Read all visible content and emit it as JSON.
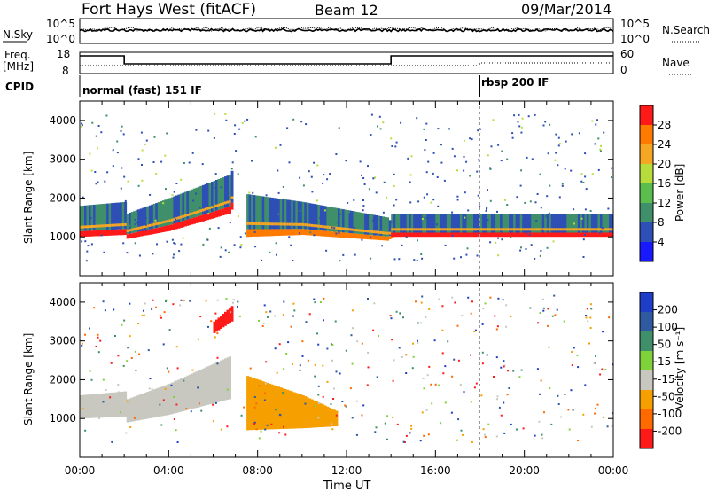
{
  "header": {
    "station": "Fort Hays West (fitACF)",
    "beam": "Beam 12",
    "date": "09/Mar/2014"
  },
  "noise_panel": {
    "left_label": "N.Sky",
    "left_ticks": [
      "10^5",
      "10^0"
    ],
    "right_label": "N.Search",
    "right_ticks": [
      "10^5",
      "10^0"
    ]
  },
  "freq_panel": {
    "left_label": "Freq.",
    "left_unit": "[MHz]",
    "left_ticks": [
      "18",
      "8"
    ],
    "right_label": "Nave",
    "right_ticks": [
      "60",
      "0"
    ]
  },
  "cpid_panel": {
    "label": "CPID",
    "segments": [
      {
        "start_hour": 0,
        "name": "normal (fast) 151 IF"
      },
      {
        "start_hour": 18,
        "name": "rbsp 200 IF"
      }
    ]
  },
  "chart_data": [
    {
      "type": "heatmap",
      "id": "power",
      "ylabel": "Slant Range [km]",
      "xlabel": "Time UT",
      "xlim": [
        0,
        24
      ],
      "ylim": [
        0,
        4500
      ],
      "yticks": [
        1000,
        2000,
        3000,
        4000
      ],
      "xticks": [
        "00:00",
        "04:00",
        "08:00",
        "12:00",
        "16:00",
        "20:00",
        "00:00"
      ],
      "colorbar": {
        "label": "Power [dB]",
        "tick_labels": [
          "28",
          "24",
          "20",
          "16",
          "12",
          "8",
          "4"
        ],
        "colors": [
          "#ff1a1a",
          "#ff7a00",
          "#f5a623",
          "#b7dd3d",
          "#5cbd4f",
          "#3e8f6a",
          "#2e4fb5",
          "#1919ff"
        ]
      },
      "bands": [
        {
          "note": "main echo band",
          "x": [
            0,
            2,
            2.1,
            4,
            6.7,
            6.8
          ],
          "range_low": [
            1000,
            1050,
            950,
            1150,
            1600,
            1700
          ],
          "range_high": [
            1800,
            1900,
            1600,
            2000,
            2600,
            2700
          ],
          "core_power": 28
        },
        {
          "note": "midday band",
          "x": [
            7.5,
            10,
            13.8,
            14.1
          ],
          "range_low": [
            1000,
            1050,
            900,
            1000
          ],
          "range_high": [
            2100,
            1900,
            1500,
            1300
          ],
          "core_power": 24
        },
        {
          "note": "afternoon band",
          "x": [
            14,
            24
          ],
          "range_low": [
            1000,
            1000
          ],
          "range_high": [
            1600,
            1600
          ],
          "core_power": 28
        }
      ]
    },
    {
      "type": "heatmap",
      "id": "velocity",
      "ylabel": "Slant Range [km]",
      "xlabel": "Time UT",
      "xlim": [
        0,
        24
      ],
      "ylim": [
        0,
        4500
      ],
      "yticks": [
        1000,
        2000,
        3000,
        4000
      ],
      "xticks": [
        "00:00",
        "04:00",
        "08:00",
        "12:00",
        "16:00",
        "20:00",
        "00:00"
      ],
      "colorbar": {
        "label": "Velocity [m s⁻¹]",
        "tick_labels": [
          "200",
          "100",
          "50",
          "15",
          "-15",
          "-50",
          "-100",
          "-200"
        ],
        "colors": [
          "#1f3ec8",
          "#2f5aa0",
          "#3e8f6a",
          "#7fd23a",
          "#c8c8c0",
          "#f5a000",
          "#ff6a00",
          "#ff1a1a"
        ]
      },
      "bands": [
        {
          "note": "ground scatter",
          "x": [
            0,
            2,
            2.1,
            4,
            6.7
          ],
          "range_low": [
            1000,
            1050,
            900,
            1100,
            1500
          ],
          "range_high": [
            1600,
            1700,
            1500,
            1900,
            2600
          ],
          "velocity": 0
        },
        {
          "note": "negative velocity region",
          "x": [
            7.5,
            10,
            11.5
          ],
          "range_low": [
            700,
            750,
            800
          ],
          "range_high": [
            2100,
            1600,
            1200
          ],
          "velocity": -30
        },
        {
          "note": "red high-range echoes",
          "x": [
            6.0,
            6.8
          ],
          "range_low": [
            3200,
            3500
          ],
          "range_high": [
            3500,
            3900
          ],
          "velocity": -200
        }
      ]
    }
  ]
}
